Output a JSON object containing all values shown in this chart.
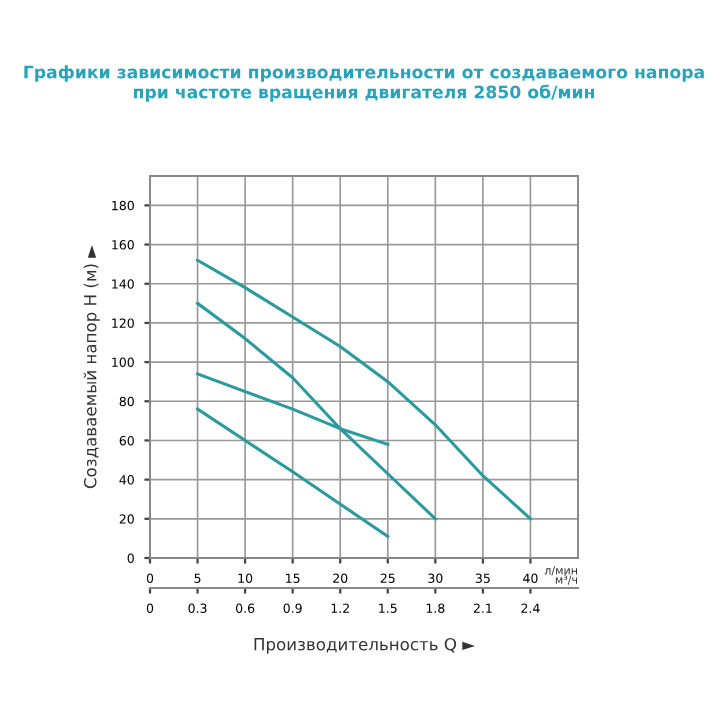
{
  "chart_data": {
    "type": "line",
    "title": "Графики зависимости производительности от создаваемого напора\nпри частоте вращения двигателя 2850 об/мин",
    "xlabel": "Производительность Q ►",
    "ylabel": "Создаваемый напор H (м) ►",
    "xlim": [
      0,
      45
    ],
    "xticks": [
      0,
      5,
      10,
      15,
      20,
      25,
      30,
      35,
      40
    ],
    "ylim": [
      0,
      195
    ],
    "yticks": [
      0,
      20,
      40,
      60,
      80,
      100,
      120,
      140,
      160,
      180
    ],
    "x2lim": [
      0,
      2.7
    ],
    "x2ticks": [
      0,
      0.3,
      0.6,
      0.9,
      1.2,
      1.5,
      1.8,
      2.1,
      2.4
    ],
    "annotations": [
      "л/мин",
      "м³/ч"
    ],
    "grid": true,
    "marker": "none",
    "line_style": "solid",
    "series": [
      {
        "color": "#2a9a9c",
        "x": [
          5,
          10,
          15,
          20,
          25,
          30,
          35,
          40
        ],
        "values": [
          152,
          138,
          123,
          108,
          90,
          68,
          42,
          20
        ]
      },
      {
        "color": "#2a9a9c",
        "x": [
          5,
          10,
          15,
          20,
          25,
          30
        ],
        "values": [
          130,
          112,
          92,
          66,
          43,
          20
        ]
      },
      {
        "color": "#2a9a9c",
        "x": [
          5,
          15,
          20,
          25
        ],
        "values": [
          94,
          76,
          66,
          58
        ]
      },
      {
        "color": "#2a9a9c",
        "x": [
          5,
          15,
          25
        ],
        "values": [
          76,
          44,
          11
        ]
      }
    ]
  }
}
